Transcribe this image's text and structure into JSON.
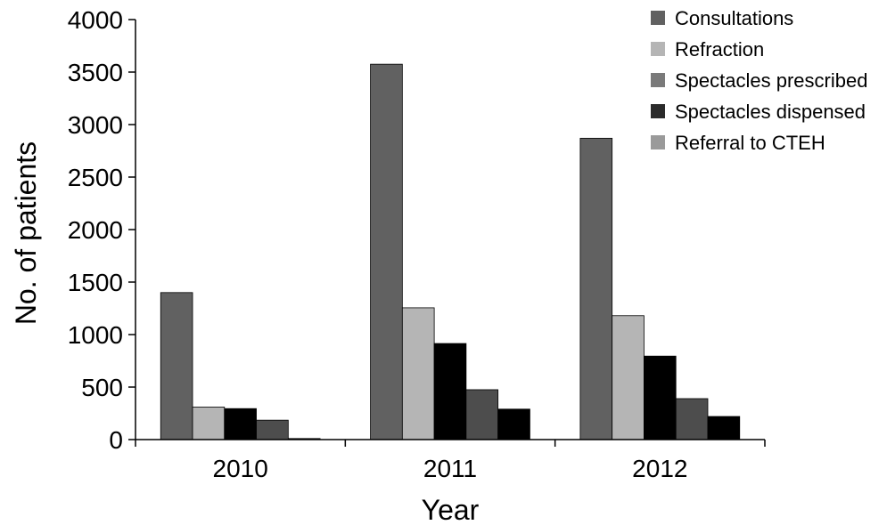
{
  "chart_data": {
    "type": "bar",
    "categories": [
      "2010",
      "2011",
      "2012"
    ],
    "series": [
      {
        "name": "Consultations",
        "color": "#616161",
        "values": [
          1400,
          3575,
          2870
        ]
      },
      {
        "name": "Refraction",
        "color": "#b5b5b5",
        "values": [
          310,
          1255,
          1180
        ]
      },
      {
        "name": "Spectacles prescribed",
        "color": "#000000",
        "values": [
          295,
          915,
          795
        ]
      },
      {
        "name": "Spectacles dispensed",
        "color": "#4d4d4d",
        "values": [
          185,
          475,
          390
        ]
      },
      {
        "name": "Referral to CTEH",
        "color": "#000000",
        "values": [
          10,
          290,
          220
        ]
      }
    ],
    "legend_colors": [
      "#616161",
      "#b5b5b5",
      "#7a7a7a",
      "#2b2b2b",
      "#9a9a9a"
    ],
    "xlabel": "Year",
    "ylabel": "No. of patients",
    "ylim": [
      0,
      4000
    ],
    "yticks": [
      "0",
      "500",
      "1000",
      "1500",
      "2000",
      "2500",
      "3000",
      "3500",
      "4000"
    ],
    "grid": false,
    "legend_position": "top-right"
  }
}
